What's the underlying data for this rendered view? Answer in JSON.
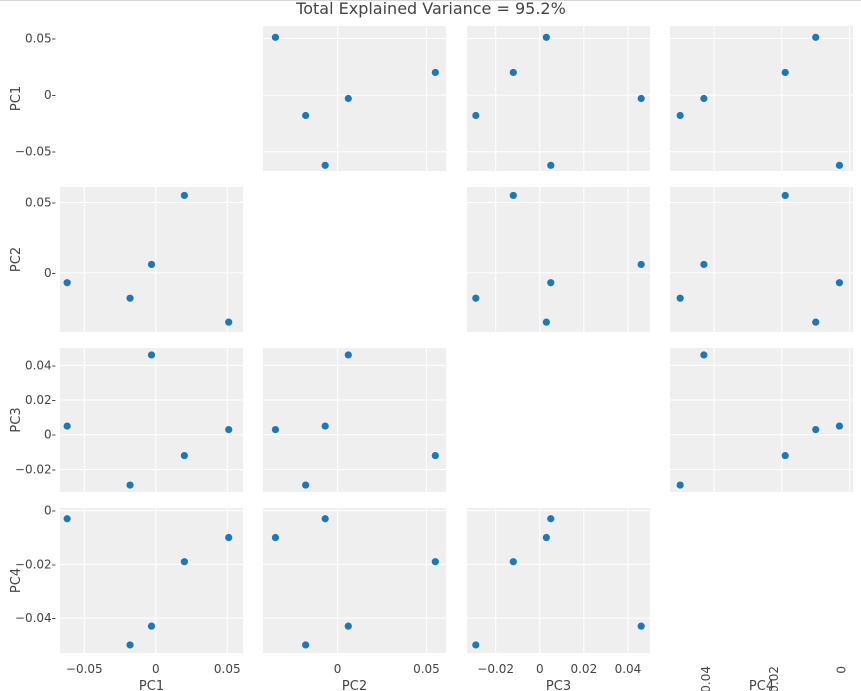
{
  "chart_data": {
    "type": "scatter",
    "title": "Total Explained Variance = 95.2%",
    "dimensions": [
      "PC1",
      "PC2",
      "PC3",
      "PC4"
    ],
    "marker_color": "#1f77b4",
    "plot_background": "#efefef",
    "grid_color": "#ffffff",
    "diagonal_panels": "empty",
    "points": [
      {
        "PC1": 0.051,
        "PC2": -0.035,
        "PC3": 0.003,
        "PC4": -0.01
      },
      {
        "PC1": 0.02,
        "PC2": 0.055,
        "PC3": -0.012,
        "PC4": -0.019
      },
      {
        "PC1": -0.003,
        "PC2": 0.006,
        "PC3": 0.046,
        "PC4": -0.043
      },
      {
        "PC1": -0.018,
        "PC2": -0.018,
        "PC3": -0.029,
        "PC4": -0.05
      },
      {
        "PC1": -0.062,
        "PC2": -0.007,
        "PC3": 0.005,
        "PC4": -0.003
      }
    ],
    "axis_ranges": {
      "PC1": [
        -0.067,
        0.061
      ],
      "PC2": [
        -0.042,
        0.061
      ],
      "PC3": [
        -0.033,
        0.05
      ],
      "PC4": [
        -0.053,
        0.001
      ]
    },
    "tick_values": {
      "PC1": [
        -0.05,
        0,
        0.05
      ],
      "PC2": [
        0,
        0.05
      ],
      "PC3": [
        -0.02,
        0,
        0.02,
        0.04
      ],
      "PC4": [
        -0.04,
        -0.02,
        0
      ]
    },
    "tick_labels": {
      "PC1": [
        "−0.05",
        "0",
        "0.05"
      ],
      "PC2": [
        "0",
        "0.05"
      ],
      "PC3": [
        "−0.02",
        "0",
        "0.02",
        "0.04"
      ],
      "PC4": [
        "−0.04",
        "−0.02",
        "0"
      ]
    }
  }
}
